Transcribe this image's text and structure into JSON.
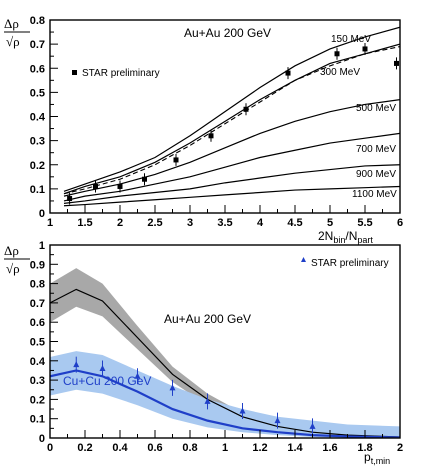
{
  "chart_data": [
    {
      "type": "line",
      "title": "Au+Au 200 GeV",
      "xlabel": "2N_bin/N_part",
      "ylabel": "Δρ/√ρ",
      "xlim": [
        1,
        6
      ],
      "ylim": [
        0,
        0.8
      ],
      "xticks": [
        1,
        1.5,
        2,
        2.5,
        3,
        3.5,
        4,
        4.5,
        5,
        5.5,
        6
      ],
      "yticks": [
        0,
        0.1,
        0.2,
        0.3,
        0.4,
        0.5,
        0.6,
        0.7,
        0.8
      ],
      "grid": false,
      "legend": "top-left",
      "axis_label_y_top": "Δρ",
      "axis_label_y_bottom": "√ρ",
      "axis_label_x_main": "2N",
      "axis_label_x_sub1": "bin",
      "axis_label_x_mid": "/N",
      "axis_label_x_sub2": "part",
      "series": [
        {
          "name": "STAR preliminary",
          "kind": "points",
          "x": [
            1.28,
            1.65,
            2.0,
            2.35,
            2.8,
            3.3,
            3.8,
            4.4,
            5.1,
            5.5,
            5.95
          ],
          "y": [
            0.06,
            0.11,
            0.11,
            0.14,
            0.22,
            0.32,
            0.43,
            0.58,
            0.66,
            0.68,
            0.62
          ]
        },
        {
          "name": "150 MeV",
          "kind": "line",
          "x": [
            1.2,
            1.5,
            2.0,
            2.5,
            3.0,
            3.5,
            4.0,
            4.5,
            5.0,
            5.5,
            6.0
          ],
          "y": [
            0.09,
            0.12,
            0.17,
            0.23,
            0.32,
            0.42,
            0.52,
            0.61,
            0.68,
            0.73,
            0.77
          ]
        },
        {
          "name": "300 MeV",
          "kind": "line",
          "x": [
            1.2,
            1.5,
            2.0,
            2.5,
            3.0,
            3.5,
            4.0,
            4.5,
            5.0,
            5.5,
            6.0
          ],
          "y": [
            0.08,
            0.11,
            0.15,
            0.21,
            0.29,
            0.38,
            0.47,
            0.55,
            0.62,
            0.66,
            0.7
          ]
        },
        {
          "name": "",
          "kind": "dashed",
          "x": [
            1.2,
            1.5,
            2.0,
            2.5,
            3.0,
            3.5,
            4.0,
            4.5,
            5.0,
            5.5,
            6.0
          ],
          "y": [
            0.08,
            0.1,
            0.14,
            0.2,
            0.28,
            0.37,
            0.46,
            0.55,
            0.61,
            0.66,
            0.69
          ]
        },
        {
          "name": "500 MeV",
          "kind": "line",
          "x": [
            1.2,
            1.5,
            2.0,
            2.5,
            3.0,
            3.5,
            4.0,
            4.5,
            5.0,
            5.5,
            6.0
          ],
          "y": [
            0.07,
            0.09,
            0.12,
            0.16,
            0.21,
            0.27,
            0.33,
            0.38,
            0.42,
            0.45,
            0.47
          ]
        },
        {
          "name": "700 MeV",
          "kind": "line",
          "x": [
            1.2,
            1.5,
            2.0,
            2.5,
            3.0,
            3.5,
            4.0,
            4.5,
            5.0,
            5.5,
            6.0
          ],
          "y": [
            0.05,
            0.07,
            0.09,
            0.12,
            0.15,
            0.19,
            0.23,
            0.26,
            0.29,
            0.31,
            0.33
          ]
        },
        {
          "name": "900 MeV",
          "kind": "line",
          "x": [
            1.2,
            1.5,
            2.0,
            2.5,
            3.0,
            3.5,
            4.0,
            4.5,
            5.0,
            5.5,
            6.0
          ],
          "y": [
            0.04,
            0.05,
            0.07,
            0.085,
            0.1,
            0.125,
            0.145,
            0.165,
            0.18,
            0.195,
            0.2
          ]
        },
        {
          "name": "1100 MeV",
          "kind": "line",
          "x": [
            1.2,
            1.5,
            2.0,
            2.5,
            3.0,
            3.5,
            4.0,
            4.5,
            5.0,
            5.5,
            6.0
          ],
          "y": [
            0.03,
            0.035,
            0.045,
            0.055,
            0.065,
            0.075,
            0.085,
            0.095,
            0.1,
            0.105,
            0.11
          ]
        }
      ]
    },
    {
      "type": "line",
      "xlabel": "p_t,min",
      "ylabel": "Δρ/√ρ",
      "xlim": [
        0,
        2
      ],
      "ylim": [
        0,
        1
      ],
      "xticks": [
        0,
        0.2,
        0.4,
        0.6,
        0.8,
        1,
        1.2,
        1.4,
        1.6,
        1.8,
        2
      ],
      "yticks": [
        0,
        0.1,
        0.2,
        0.3,
        0.4,
        0.5,
        0.6,
        0.7,
        0.8,
        0.9,
        1
      ],
      "grid": false,
      "legend": "top-right",
      "axis_label_y_top": "Δρ",
      "axis_label_y_bottom": "√ρ",
      "axis_label_x_main": "p",
      "axis_label_x_sub": "t,min",
      "series_labels": [
        "Au+Au 200 GeV",
        "Cu+Cu 200 GeV"
      ],
      "series": [
        {
          "name": "Au+Au 200 GeV",
          "kind": "line",
          "x": [
            0,
            0.15,
            0.3,
            0.5,
            0.7,
            0.9,
            1.1,
            1.3,
            1.5,
            1.7,
            2.0
          ],
          "y": [
            0.7,
            0.77,
            0.71,
            0.52,
            0.33,
            0.2,
            0.11,
            0.06,
            0.03,
            0.015,
            0.005
          ]
        },
        {
          "name": "Au+Au 200 GeV band",
          "kind": "band",
          "color": "#a8a8a8",
          "x": [
            0,
            0.15,
            0.3,
            0.5,
            0.7,
            0.9,
            1.1,
            1.3,
            1.5,
            1.7,
            2.0
          ],
          "low": [
            0.6,
            0.68,
            0.63,
            0.46,
            0.29,
            0.17,
            0.09,
            0.05,
            0.025,
            0.01,
            0.003
          ],
          "high": [
            0.8,
            0.88,
            0.8,
            0.58,
            0.37,
            0.23,
            0.13,
            0.075,
            0.04,
            0.02,
            0.008
          ]
        },
        {
          "name": "Cu+Cu 200 GeV",
          "kind": "line",
          "color": "#1f3fc8",
          "x": [
            0,
            0.15,
            0.3,
            0.5,
            0.7,
            0.9,
            1.1,
            1.3,
            1.5,
            1.7,
            2.0
          ],
          "y": [
            0.32,
            0.35,
            0.32,
            0.24,
            0.15,
            0.09,
            0.05,
            0.03,
            0.015,
            0.008,
            0.003
          ]
        },
        {
          "name": "Cu+Cu 200 GeV band",
          "kind": "band",
          "color": "#a9c9f0",
          "x": [
            0,
            0.15,
            0.3,
            0.5,
            0.7,
            0.9,
            1.1,
            1.3,
            1.5,
            1.7,
            2.0
          ],
          "low": [
            0.22,
            0.25,
            0.23,
            0.17,
            0.1,
            0.055,
            0.03,
            0.015,
            0.005,
            0.0,
            0.0
          ],
          "high": [
            0.42,
            0.45,
            0.43,
            0.35,
            0.27,
            0.2,
            0.15,
            0.11,
            0.09,
            0.07,
            0.06
          ]
        },
        {
          "name": "STAR preliminary",
          "kind": "triangles",
          "color": "#1f3fc8",
          "x": [
            0.15,
            0.3,
            0.5,
            0.7,
            0.9,
            1.1,
            1.3,
            1.5
          ],
          "y": [
            0.38,
            0.36,
            0.32,
            0.26,
            0.19,
            0.14,
            0.09,
            0.06
          ]
        }
      ]
    }
  ]
}
